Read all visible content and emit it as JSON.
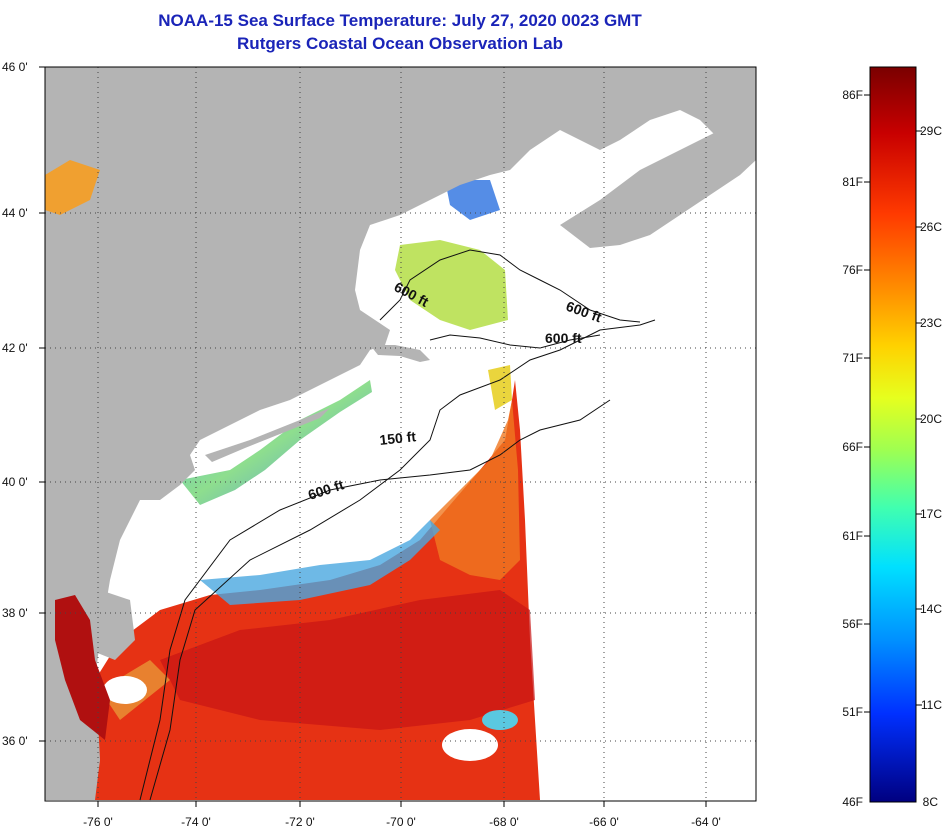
{
  "header": {
    "title": "NOAA-15 Sea Surface Temperature:  July 27, 2020 0023 GMT",
    "subtitle": "Rutgers Coastal Ocean Observation Lab"
  },
  "map": {
    "lat_ticks": [
      "46 0'",
      "44 0'",
      "42 0'",
      "40 0'",
      "38 0'",
      "36 0'"
    ],
    "lon_ticks": [
      "-76 0'",
      "-74 0'",
      "-72 0'",
      "-70 0'",
      "-68 0'",
      "-66 0'",
      "-64 0'"
    ],
    "contour_labels": [
      "600 ft",
      "600 ft",
      "600 ft",
      "150 ft",
      "600 ft"
    ],
    "colors": {
      "land": "#b4b4b4",
      "cloud": "#ffffff",
      "warm": "#e63214",
      "cool": "#3aa3e0"
    }
  },
  "colorbar": {
    "fahrenheit": [
      "86F",
      "81F",
      "76F",
      "71F",
      "66F",
      "61F",
      "56F",
      "51F",
      "46F"
    ],
    "celsius": [
      "29C",
      "26C",
      "23C",
      "20C",
      "17C",
      "14C",
      "11C",
      "8C"
    ],
    "stops": [
      "#7a0000",
      "#c80000",
      "#ff3a00",
      "#ff8c00",
      "#ffd200",
      "#e6ff1e",
      "#a0ff50",
      "#40ffb0",
      "#00e0ff",
      "#0090ff",
      "#0030ff",
      "#000080"
    ]
  }
}
